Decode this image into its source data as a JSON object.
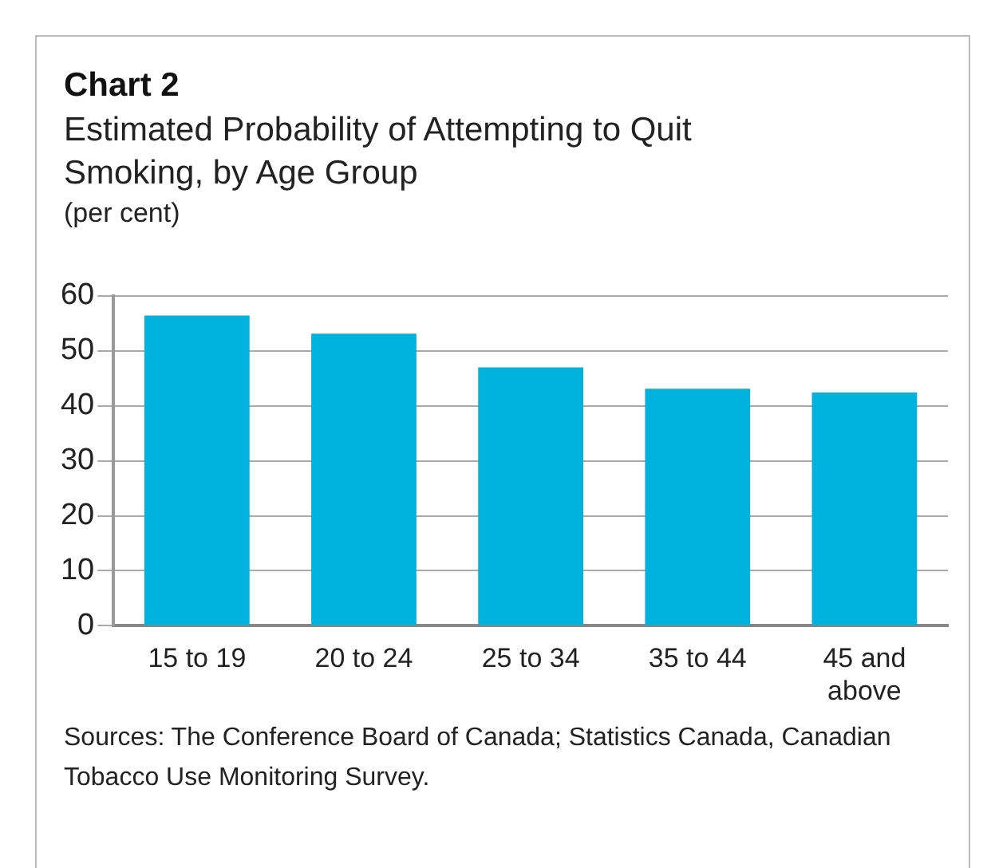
{
  "chart_data": {
    "type": "bar",
    "title": "Chart 2",
    "subtitle": "Estimated Probability of Attempting to Quit Smoking, by Age Group",
    "ylabel": "(per cent)",
    "categories": [
      "15 to 19",
      "20 to 24",
      "25 to 34",
      "35 to 44",
      "45 and above"
    ],
    "values": [
      56.4,
      53.1,
      47.0,
      43.1,
      42.4
    ],
    "color": "#00b2dd",
    "ylim": [
      0,
      60
    ],
    "yticks": [
      0,
      10,
      20,
      30,
      40,
      50,
      60
    ],
    "grid": "y",
    "legend": false,
    "annotations": [
      "Sources: The Conference Board of Canada; Statistics Canada, Canadian Tobacco Use Monitoring Survey."
    ]
  }
}
